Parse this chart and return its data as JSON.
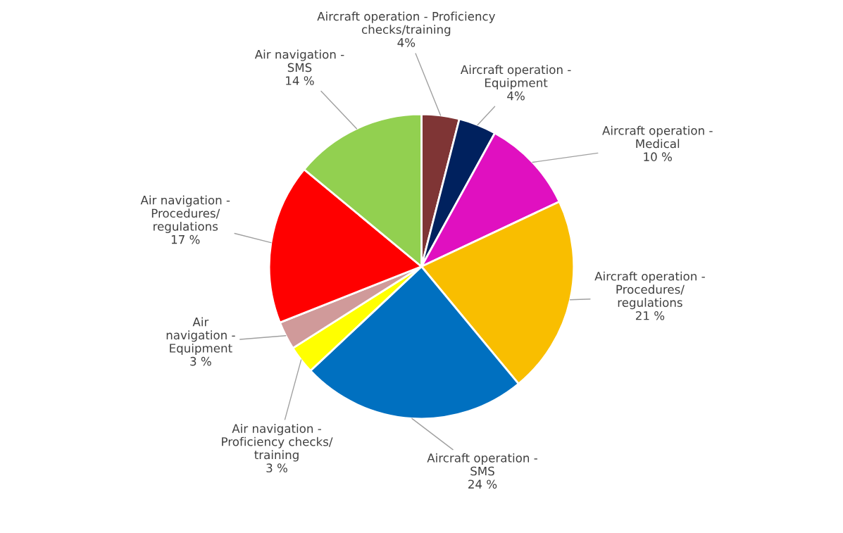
{
  "chart_data": {
    "type": "pie",
    "categories": [
      "Aircraft operation - Proficiency\nchecks/training",
      "Aircraft operation -\nEquipment",
      "Aircraft operation -\nMedical",
      "Aircraft operation -\nProcedures/\nregulations",
      "Aircraft operation -\nSMS",
      "Air navigation -\nProficiency checks/\ntraining",
      "Air\nnavigation -\nEquipment",
      "Air navigation -\nProcedures/\nregulations",
      "Air navigation -\nSMS"
    ],
    "values": [
      4,
      4,
      10,
      21,
      24,
      3,
      3,
      17,
      14
    ],
    "value_labels": [
      "4%",
      "4%",
      "10 %",
      "21 %",
      "24 %",
      "3 %",
      "3 %",
      "17 %",
      "14 %"
    ],
    "colors": [
      "#7f3535",
      "#00215e",
      "#e010c0",
      "#f9be00",
      "#0070c0",
      "#ffff00",
      "#d09a9a",
      "#ff0000",
      "#92d050"
    ]
  }
}
